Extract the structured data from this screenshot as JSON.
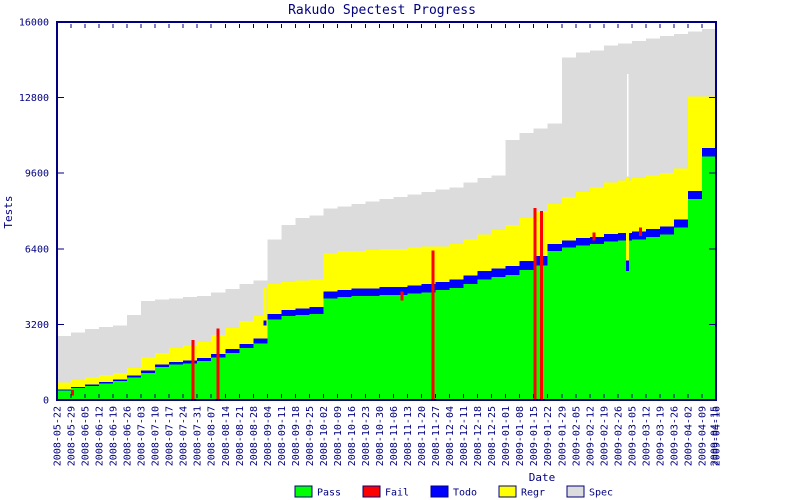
{
  "colors": {
    "axis": "#000080",
    "text": "#000080",
    "background": "#ffffff",
    "pass": "#00ff00",
    "fail": "#ff0000",
    "todo": "#0000ff",
    "regr": "#ffff00",
    "spec": "#dcdcdc"
  },
  "legend": {
    "items": [
      {
        "label": "Pass",
        "color": "#00ff00"
      },
      {
        "label": "Fail",
        "color": "#ff0000"
      },
      {
        "label": "Todo",
        "color": "#0000ff"
      },
      {
        "label": "Regr",
        "color": "#ffff00"
      },
      {
        "label": "Spec",
        "color": "#dcdcdc"
      }
    ]
  },
  "chart_data": {
    "type": "area",
    "stacked": true,
    "grid": false,
    "legend_position": "bottom-center",
    "title": "Rakudo Spectest Progress",
    "xlabel": "Date",
    "ylabel": "Tests",
    "ylim": [
      0,
      16000
    ],
    "yticks": [
      0,
      3200,
      6400,
      9600,
      12800,
      16000
    ],
    "x_dates": [
      "2008-05-22",
      "2008-05-29",
      "2008-06-05",
      "2008-06-12",
      "2008-06-19",
      "2008-06-26",
      "2008-07-03",
      "2008-07-10",
      "2008-07-17",
      "2008-07-24",
      "2008-07-31",
      "2008-08-07",
      "2008-08-14",
      "2008-08-21",
      "2008-08-28",
      "2008-09-04",
      "2008-09-11",
      "2008-09-18",
      "2008-09-25",
      "2008-10-02",
      "2008-10-09",
      "2008-10-16",
      "2008-10-23",
      "2008-10-30",
      "2008-11-06",
      "2008-11-13",
      "2008-11-20",
      "2008-11-27",
      "2008-12-04",
      "2008-12-11",
      "2008-12-18",
      "2008-12-25",
      "2009-01-01",
      "2009-01-08",
      "2009-01-15",
      "2009-01-22",
      "2009-01-29",
      "2009-02-05",
      "2009-02-12",
      "2009-02-19",
      "2009-02-26",
      "2009-03-05",
      "2009-03-12",
      "2009-03-19",
      "2009-03-26",
      "2009-04-02",
      "2009-04-09",
      "2009-04-16"
    ],
    "extra_x_label": {
      "text": "2009-04-15",
      "week": 46.85
    },
    "series": [
      {
        "name": "Pass",
        "color": "#00ff00",
        "values": [
          400,
          500,
          600,
          700,
          800,
          950,
          1150,
          1400,
          1500,
          1550,
          1650,
          1800,
          2000,
          2200,
          2400,
          3400,
          3550,
          3600,
          3650,
          4300,
          4350,
          4400,
          4400,
          4450,
          4450,
          4500,
          4550,
          4650,
          4750,
          4900,
          5100,
          5200,
          5300,
          5500,
          5700,
          6300,
          6450,
          6550,
          6600,
          6700,
          6750,
          6800,
          6900,
          7000,
          7300,
          8500,
          10300,
          10400
        ]
      },
      {
        "name": "Todo",
        "color": "#0000ff",
        "values": [
          40,
          50,
          60,
          60,
          70,
          80,
          90,
          100,
          110,
          120,
          130,
          140,
          160,
          180,
          200,
          250,
          260,
          270,
          280,
          300,
          310,
          320,
          320,
          330,
          340,
          340,
          350,
          350,
          360,
          360,
          370,
          370,
          380,
          380,
          390,
          300,
          300,
          310,
          310,
          320,
          320,
          330,
          330,
          340,
          350,
          350,
          360,
          380
        ]
      },
      {
        "name": "Regr",
        "color": "#ffff00",
        "values": [
          310,
          300,
          290,
          290,
          280,
          320,
          560,
          500,
          590,
          630,
          670,
          810,
          890,
          970,
          950,
          1250,
          1190,
          1180,
          1170,
          1600,
          1640,
          1580,
          1630,
          1620,
          1610,
          1610,
          1600,
          1500,
          1490,
          1540,
          1530,
          1630,
          1720,
          1820,
          1910,
          1700,
          1850,
          1940,
          2090,
          2180,
          2230,
          2270,
          2270,
          2260,
          2150,
          4000,
          2190,
          2020
        ]
      },
      {
        "name": "Spec",
        "color": "#dcdcdc",
        "values": [
          1950,
          2000,
          2050,
          2050,
          2000,
          2250,
          2400,
          2250,
          2100,
          2050,
          1950,
          1800,
          1650,
          1550,
          1500,
          1900,
          2400,
          2650,
          2700,
          1900,
          1900,
          2000,
          2050,
          2100,
          2200,
          2250,
          2300,
          2400,
          2400,
          2400,
          2400,
          2300,
          3600,
          3600,
          3500,
          3400,
          5900,
          5900,
          5800,
          5800,
          5800,
          5800,
          5800,
          5800,
          5700,
          2750,
          2850,
          3050
        ]
      }
    ],
    "fail_impulses": [
      {
        "week": 9.7,
        "tests": 2530
      },
      {
        "week": 11.5,
        "tests": 3030
      },
      {
        "week": 26.8,
        "tests": 6320
      },
      {
        "week": 34.1,
        "tests": 8130
      },
      {
        "week": 34.55,
        "tests": 8000
      }
    ],
    "fail_marks": [
      {
        "week": 1.1,
        "from": 200,
        "to": 420
      },
      {
        "week": 24.6,
        "from": 4210,
        "to": 4600
      },
      {
        "week": 38.3,
        "from": 6740,
        "to": 7080
      },
      {
        "week": 41.6,
        "from": 6950,
        "to": 7300
      }
    ],
    "dip_lines": [
      {
        "week": 14.85,
        "regr_top": 4760,
        "regr_bottom": 3370,
        "todo_top": 3370,
        "todo_bottom": 3160
      },
      {
        "week": 40.7,
        "regr_top": 9400,
        "regr_bottom": 5900,
        "todo_top": 5900,
        "todo_bottom": 5470,
        "spec_top": 13800,
        "spec_bottom": 9470
      }
    ]
  }
}
